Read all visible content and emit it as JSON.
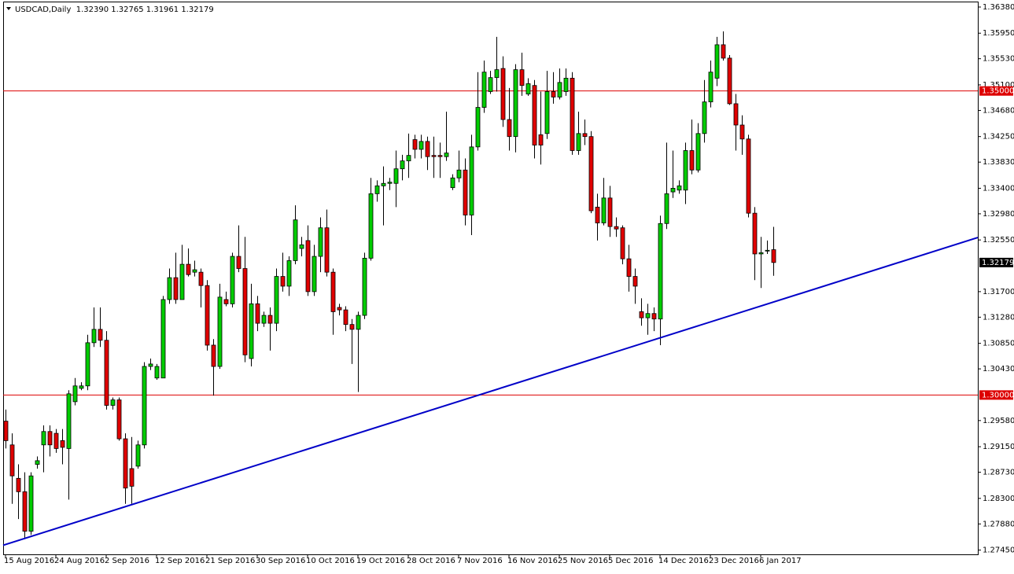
{
  "chart_data": {
    "type": "candlestick",
    "title": "USDCAD,Daily  1.32390 1.32765 1.31961 1.32179",
    "categories": [
      "15 Aug 2016",
      null,
      null,
      null,
      null,
      null,
      null,
      null,
      "24 Aug 2016",
      null,
      null,
      null,
      null,
      null,
      null,
      null,
      "2 Sep 2016",
      null,
      null,
      null,
      null,
      null,
      null,
      null,
      "12 Sep 2016",
      null,
      null,
      null,
      null,
      null,
      null,
      null,
      "21 Sep 2016",
      null,
      null,
      null,
      null,
      null,
      null,
      null,
      "30 Sep 2016",
      null,
      null,
      null,
      null,
      null,
      null,
      null,
      "10 Oct 2016",
      null,
      null,
      null,
      null,
      null,
      null,
      null,
      "19 Oct 2016",
      null,
      null,
      null,
      null,
      null,
      null,
      null,
      "28 Oct 2016",
      null,
      null,
      null,
      null,
      null,
      null,
      null,
      "7 Nov 2016",
      null,
      null,
      null,
      null,
      null,
      null,
      null,
      "16 Nov 2016",
      null,
      null,
      null,
      null,
      null,
      null,
      null,
      "25 Nov 2016",
      null,
      null,
      null,
      null,
      null,
      null,
      null,
      "5 Dec 2016",
      null,
      null,
      null,
      null,
      null,
      null,
      null,
      "14 Dec 2016",
      null,
      null,
      null,
      null,
      null,
      null,
      null,
      "23 Dec 2016",
      null,
      null,
      null,
      null,
      null,
      null,
      null,
      "6 Jan 2017",
      null,
      null
    ],
    "open": [
      1.2957,
      1.2918,
      1.2863,
      1.2841,
      1.2776,
      1.2886,
      1.2918,
      1.294,
      1.2937,
      1.2925,
      1.2912,
      1.2989,
      1.3011,
      1.3015,
      1.3086,
      1.3108,
      1.309,
      1.2983,
      1.2992,
      1.2928,
      1.2879,
      1.2883,
      1.2918,
      1.3047,
      1.3028,
      1.3028,
      1.3157,
      1.3193,
      1.3157,
      1.3215,
      1.3202,
      1.3202,
      1.318,
      1.3082,
      1.3047,
      1.3157,
      1.315,
      1.3228,
      1.3208,
      1.306,
      1.315,
      1.3118,
      1.3131,
      1.3118,
      1.3195,
      1.3179,
      1.3221,
      1.3241,
      1.3254,
      1.317,
      1.3228,
      1.3275,
      1.3202,
      1.3144,
      1.314,
      1.3116,
      1.3108,
      1.3131,
      1.3225,
      1.3331,
      1.3344,
      1.3348,
      1.3348,
      1.3372,
      1.3385,
      1.342,
      1.3404,
      1.3417,
      1.3394,
      1.3394,
      1.3392,
      1.3341,
      1.3357,
      1.337,
      1.3296,
      1.3408,
      1.3473,
      1.3499,
      1.3522,
      1.3537,
      1.3453,
      1.3425,
      1.3535,
      1.3495,
      1.3509,
      1.3428,
      1.343,
      1.3499,
      1.349,
      1.3499,
      1.3521,
      1.3402,
      1.343,
      1.3425,
      1.3309,
      1.3283,
      1.3324,
      1.3277,
      1.3275,
      1.3224,
      1.3195,
      1.3137,
      1.3127,
      1.3134,
      1.3125,
      1.3282,
      1.3334,
      1.3337,
      1.3337,
      1.3402,
      1.337,
      1.343,
      1.3482,
      1.3521,
      1.3576,
      1.3554,
      1.3479,
      1.3444,
      1.3421,
      1.3299,
      1.3232,
      1.3237,
      1.3239
    ],
    "high": [
      1.2976,
      1.2937,
      1.2886,
      1.2873,
      1.2873,
      1.2899,
      1.295,
      1.295,
      1.2944,
      1.2944,
      1.3008,
      1.3028,
      1.3021,
      1.3099,
      1.3144,
      1.3144,
      1.3105,
      1.2996,
      1.2996,
      1.2937,
      1.2931,
      1.2925,
      1.3054,
      1.306,
      1.3051,
      1.3163,
      1.3208,
      1.3234,
      1.3247,
      1.3241,
      1.3221,
      1.3208,
      1.3189,
      1.3092,
      1.3183,
      1.317,
      1.3234,
      1.3279,
      1.326,
      1.3183,
      1.3163,
      1.3137,
      1.3144,
      1.3208,
      1.3234,
      1.3228,
      1.3312,
      1.326,
      1.3279,
      1.3247,
      1.3292,
      1.3305,
      1.3208,
      1.315,
      1.3146,
      1.3125,
      1.3137,
      1.3234,
      1.3357,
      1.3353,
      1.3376,
      1.3357,
      1.3402,
      1.3395,
      1.343,
      1.3428,
      1.3428,
      1.3425,
      1.3425,
      1.3415,
      1.3466,
      1.3363,
      1.3402,
      1.3389,
      1.3428,
      1.3531,
      1.355,
      1.3533,
      1.3589,
      1.3557,
      1.3505,
      1.3544,
      1.3563,
      1.3521,
      1.3518,
      1.3499,
      1.3533,
      1.3531,
      1.3537,
      1.3537,
      1.3531,
      1.3466,
      1.3453,
      1.3434,
      1.3331,
      1.3357,
      1.3344,
      1.3292,
      1.3279,
      1.3247,
      1.3208,
      1.3159,
      1.315,
      1.3144,
      1.3295,
      1.3415,
      1.3402,
      1.3353,
      1.3415,
      1.3453,
      1.3447,
      1.3518,
      1.355,
      1.3589,
      1.3598,
      1.3559,
      1.3495,
      1.346,
      1.3428,
      1.3309,
      1.326,
      1.3254,
      1.32765
    ],
    "low": [
      1.2912,
      1.2821,
      1.2796,
      1.2763,
      1.277,
      1.2879,
      1.2873,
      1.2899,
      1.2905,
      1.2886,
      1.2828,
      1.2983,
      1.3008,
      1.3008,
      1.3079,
      1.3079,
      1.2976,
      1.2976,
      1.2925,
      1.2821,
      1.2821,
      1.2879,
      1.2912,
      1.3041,
      1.3025,
      1.3028,
      1.315,
      1.315,
      1.3157,
      1.3195,
      1.3195,
      1.3144,
      1.3073,
      1.2999,
      1.3043,
      1.3146,
      1.3144,
      1.3202,
      1.3054,
      1.3047,
      1.3105,
      1.3112,
      1.3073,
      1.3105,
      1.317,
      1.3163,
      1.3215,
      1.3228,
      1.3163,
      1.3163,
      1.3202,
      1.3195,
      1.3099,
      1.3131,
      1.3105,
      1.3051,
      1.3005,
      1.3125,
      1.3221,
      1.3318,
      1.3279,
      1.3337,
      1.3309,
      1.3353,
      1.3357,
      1.3389,
      1.3389,
      1.337,
      1.3357,
      1.3357,
      1.3385,
      1.3337,
      1.335,
      1.3279,
      1.3263,
      1.3402,
      1.3464,
      1.3495,
      1.3499,
      1.3441,
      1.3402,
      1.3399,
      1.3492,
      1.3492,
      1.3389,
      1.3379,
      1.3421,
      1.3479,
      1.3486,
      1.3492,
      1.3395,
      1.3395,
      1.3411,
      1.3299,
      1.3254,
      1.3279,
      1.326,
      1.326,
      1.3215,
      1.317,
      1.315,
      1.3114,
      1.3099,
      1.3105,
      1.3082,
      1.3273,
      1.3324,
      1.3331,
      1.3314,
      1.3363,
      1.3366,
      1.3415,
      1.3473,
      1.3508,
      1.355,
      1.3477,
      1.3402,
      1.3395,
      1.3292,
      1.3189,
      1.3176,
      1.3232,
      1.31961
    ],
    "close": [
      1.2925,
      1.2867,
      1.2841,
      1.2776,
      1.2867,
      1.2892,
      1.294,
      1.2918,
      1.2912,
      1.2914,
      1.3002,
      1.3015,
      1.3015,
      1.3086,
      1.3108,
      1.309,
      1.2983,
      1.2992,
      1.2928,
      1.2847,
      1.285,
      1.2918,
      1.3047,
      1.3051,
      1.3047,
      1.3157,
      1.3193,
      1.3157,
      1.3215,
      1.3198,
      1.3206,
      1.318,
      1.3082,
      1.3047,
      1.3161,
      1.315,
      1.3228,
      1.3208,
      1.3066,
      1.315,
      1.3118,
      1.3131,
      1.3118,
      1.3195,
      1.3179,
      1.3221,
      1.3288,
      1.3247,
      1.317,
      1.3228,
      1.3275,
      1.3202,
      1.3137,
      1.314,
      1.3116,
      1.3108,
      1.3131,
      1.3225,
      1.3331,
      1.3344,
      1.3348,
      1.335,
      1.3372,
      1.3385,
      1.3394,
      1.3404,
      1.3417,
      1.3392,
      1.3392,
      1.3392,
      1.3398,
      1.3357,
      1.337,
      1.3296,
      1.3408,
      1.3473,
      1.3531,
      1.3522,
      1.3535,
      1.3453,
      1.3425,
      1.3535,
      1.3509,
      1.3512,
      1.3411,
      1.3411,
      1.3499,
      1.349,
      1.3514,
      1.3521,
      1.3402,
      1.343,
      1.3425,
      1.3303,
      1.3283,
      1.3324,
      1.3277,
      1.3273,
      1.3224,
      1.3195,
      1.3179,
      1.3127,
      1.3134,
      1.3125,
      1.3282,
      1.3331,
      1.334,
      1.3344,
      1.3402,
      1.337,
      1.343,
      1.3482,
      1.3531,
      1.3576,
      1.3554,
      1.3479,
      1.3444,
      1.3421,
      1.3299,
      1.3232,
      1.3234,
      1.3238,
      1.32179
    ],
    "up_color": "#00cc00",
    "down_color": "#e00000",
    "ylim": [
      1.2738,
      1.3647
    ],
    "yticks": [
      {
        "value": 1.3638,
        "label": "1.36380"
      },
      {
        "value": 1.3595,
        "label": "1.35950"
      },
      {
        "value": 1.3553,
        "label": "1.35530"
      },
      {
        "value": 1.351,
        "label": "1.35100"
      },
      {
        "value": 1.3468,
        "label": "1.34680"
      },
      {
        "value": 1.3425,
        "label": "1.34250"
      },
      {
        "value": 1.3383,
        "label": "1.33830"
      },
      {
        "value": 1.334,
        "label": "1.33400"
      },
      {
        "value": 1.3298,
        "label": "1.32980"
      },
      {
        "value": 1.3255,
        "label": "1.32550"
      },
      {
        "value": 1.317,
        "label": "1.31700"
      },
      {
        "value": 1.3128,
        "label": "1.31280"
      },
      {
        "value": 1.3085,
        "label": "1.30850"
      },
      {
        "value": 1.3043,
        "label": "1.30430"
      },
      {
        "value": 1.2958,
        "label": "1.29580"
      },
      {
        "value": 1.2915,
        "label": "1.29150"
      },
      {
        "value": 1.2873,
        "label": "1.28730"
      },
      {
        "value": 1.283,
        "label": "1.28300"
      },
      {
        "value": 1.2788,
        "label": "1.27880"
      },
      {
        "value": 1.2745,
        "label": "1.27450"
      }
    ],
    "hlines": [
      {
        "value": 1.35,
        "label": "1.35000"
      },
      {
        "value": 1.3,
        "label": "1.30000"
      }
    ],
    "hline_color": "#dd0000",
    "trendline": {
      "color": "#0000c8",
      "values": [
        1.2753,
        1.3259
      ]
    }
  }
}
